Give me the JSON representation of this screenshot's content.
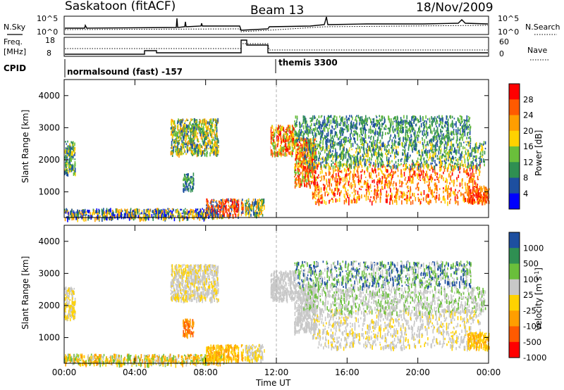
{
  "header": {
    "radar": "Saskatoon (fitACF)",
    "beam": "Beam 13",
    "date": "18/Nov/2009"
  },
  "top_panels": {
    "nsky_label": "N.Sky",
    "nsky_hi": "10^5",
    "nsky_lo": "10^0",
    "nsearch_label": "N.Search",
    "nsearch_hi": "10^5",
    "nsearch_lo": "10^0",
    "freq_label": "Freq.",
    "freq_unit": "[MHz]",
    "freq_hi": "18",
    "freq_lo": "8",
    "nave_label": "Nave",
    "nave_hi": "60",
    "nave_lo": "0",
    "cpid_label": "CPID",
    "cpid_1": "normalsound (fast) -157",
    "cpid_2": "themis 3300"
  },
  "chart_data": [
    {
      "type": "heatmap",
      "name": "power-panel",
      "ylabel": "Slant Range [km]",
      "yticks": [
        "1000",
        "2000",
        "3000",
        "4000"
      ],
      "ylim": [
        200,
        4500
      ],
      "xlim": [
        0,
        24
      ],
      "colorbar": {
        "label": "Power [dB]",
        "ticks": [
          "28",
          "24",
          "20",
          "16",
          "12",
          "8",
          "4"
        ],
        "colors": [
          "#ff0000",
          "#ff5a00",
          "#ff9e00",
          "#ffd200",
          "#6abf3b",
          "#2f8f52",
          "#1d4fa0",
          "#0000ff"
        ]
      },
      "regions": [
        {
          "t0": 0.0,
          "t1": 0.6,
          "r0": 1600,
          "r1": 2600,
          "colors": [
            "#1d4fa0",
            "#2f8f52",
            "#6abf3b",
            "#ffd200"
          ]
        },
        {
          "t0": 0.0,
          "t1": 9.0,
          "r0": 200,
          "r1": 500,
          "colors": [
            "#0000ff",
            "#1d4fa0",
            "#2f8f52",
            "#ffd200",
            "#ff9e00"
          ]
        },
        {
          "t0": 6.0,
          "t1": 8.7,
          "r0": 2200,
          "r1": 3300,
          "colors": [
            "#2f8f52",
            "#6abf3b",
            "#ffd200",
            "#ff9e00",
            "#1d4fa0"
          ]
        },
        {
          "t0": 6.7,
          "t1": 7.3,
          "r0": 1100,
          "r1": 1600,
          "colors": [
            "#2f8f52",
            "#6abf3b",
            "#1d4fa0"
          ]
        },
        {
          "t0": 8.0,
          "t1": 10.1,
          "r0": 300,
          "r1": 800,
          "colors": [
            "#ff5a00",
            "#ff0000",
            "#ff9e00",
            "#1d4fa0"
          ]
        },
        {
          "t0": 10.2,
          "t1": 11.3,
          "r0": 300,
          "r1": 800,
          "colors": [
            "#2f8f52",
            "#ff9e00",
            "#ffd200",
            "#1d4fa0"
          ]
        },
        {
          "t0": 11.5,
          "t1": 13.0,
          "r0": 2200,
          "r1": 3100,
          "colors": [
            "#ff0000",
            "#ff5a00",
            "#ffd200",
            "#6abf3b"
          ]
        },
        {
          "t0": 13.0,
          "t1": 14.2,
          "r0": 1200,
          "r1": 2700,
          "colors": [
            "#ff5a00",
            "#ff0000",
            "#ffd200",
            "#6abf3b"
          ]
        },
        {
          "t0": 14.0,
          "t1": 23.5,
          "r0": 700,
          "r1": 1900,
          "colors": [
            "#ff0000",
            "#ff5a00",
            "#ff9e00",
            "#ffd200"
          ]
        },
        {
          "t0": 13.5,
          "t1": 23.8,
          "r0": 1800,
          "r1": 2600,
          "colors": [
            "#6abf3b",
            "#2f8f52",
            "#ffd200",
            "#1d4fa0"
          ]
        },
        {
          "t0": 13.0,
          "t1": 23.0,
          "r0": 2600,
          "r1": 3400,
          "colors": [
            "#6abf3b",
            "#1d4fa0",
            "#2f8f52"
          ]
        },
        {
          "t0": 22.8,
          "t1": 24.0,
          "r0": 700,
          "r1": 1200,
          "colors": [
            "#ff5a00",
            "#ff0000",
            "#ff9e00"
          ]
        }
      ]
    },
    {
      "type": "heatmap",
      "name": "velocity-panel",
      "ylabel": "Slant Range [km]",
      "yticks": [
        "1000",
        "2000",
        "3000",
        "4000"
      ],
      "ylim": [
        200,
        4500
      ],
      "xlim": [
        0,
        24
      ],
      "xticks": [
        "00:00",
        "04:00",
        "08:00",
        "12:00",
        "16:00",
        "20:00",
        "00:00"
      ],
      "xlabel": "Time UT",
      "colorbar": {
        "label": "Velocity [m s^-1]",
        "ticks": [
          "1000",
          "500",
          "100",
          "25",
          "-25",
          "-100",
          "-500",
          "-1000"
        ],
        "colors": [
          "#1d4fa0",
          "#2f8f52",
          "#6abf3b",
          "#c8c8c8",
          "#ffd200",
          "#ff9e00",
          "#ff5a00",
          "#ff0000"
        ]
      },
      "regions": [
        {
          "t0": 0.0,
          "t1": 0.6,
          "r0": 1600,
          "r1": 2600,
          "colors": [
            "#c8c8c8",
            "#ffd200"
          ]
        },
        {
          "t0": 0.0,
          "t1": 9.0,
          "r0": 200,
          "r1": 500,
          "colors": [
            "#ffd200",
            "#ff9e00",
            "#c8c8c8",
            "#6abf3b"
          ]
        },
        {
          "t0": 6.0,
          "t1": 8.7,
          "r0": 2200,
          "r1": 3300,
          "colors": [
            "#c8c8c8",
            "#c8c8c8",
            "#ffd200"
          ]
        },
        {
          "t0": 6.7,
          "t1": 7.3,
          "r0": 1100,
          "r1": 1600,
          "colors": [
            "#ff5a00",
            "#ff9e00"
          ]
        },
        {
          "t0": 8.0,
          "t1": 10.1,
          "r0": 300,
          "r1": 800,
          "colors": [
            "#ffd200",
            "#ff9e00"
          ]
        },
        {
          "t0": 10.2,
          "t1": 11.3,
          "r0": 300,
          "r1": 800,
          "colors": [
            "#c8c8c8",
            "#ffd200"
          ]
        },
        {
          "t0": 11.5,
          "t1": 13.0,
          "r0": 2200,
          "r1": 3100,
          "colors": [
            "#c8c8c8"
          ]
        },
        {
          "t0": 13.0,
          "t1": 14.2,
          "r0": 1200,
          "r1": 2700,
          "colors": [
            "#c8c8c8"
          ]
        },
        {
          "t0": 14.0,
          "t1": 23.5,
          "r0": 700,
          "r1": 1900,
          "colors": [
            "#c8c8c8",
            "#c8c8c8",
            "#c8c8c8",
            "#ffd200"
          ]
        },
        {
          "t0": 13.5,
          "t1": 23.8,
          "r0": 1800,
          "r1": 2600,
          "colors": [
            "#c8c8c8",
            "#c8c8c8",
            "#6abf3b"
          ]
        },
        {
          "t0": 13.0,
          "t1": 23.0,
          "r0": 2600,
          "r1": 3400,
          "colors": [
            "#c8c8c8",
            "#6abf3b",
            "#1d4fa0"
          ]
        },
        {
          "t0": 22.8,
          "t1": 24.0,
          "r0": 700,
          "r1": 1200,
          "colors": [
            "#ffd200",
            "#ff9e00"
          ]
        }
      ]
    }
  ]
}
